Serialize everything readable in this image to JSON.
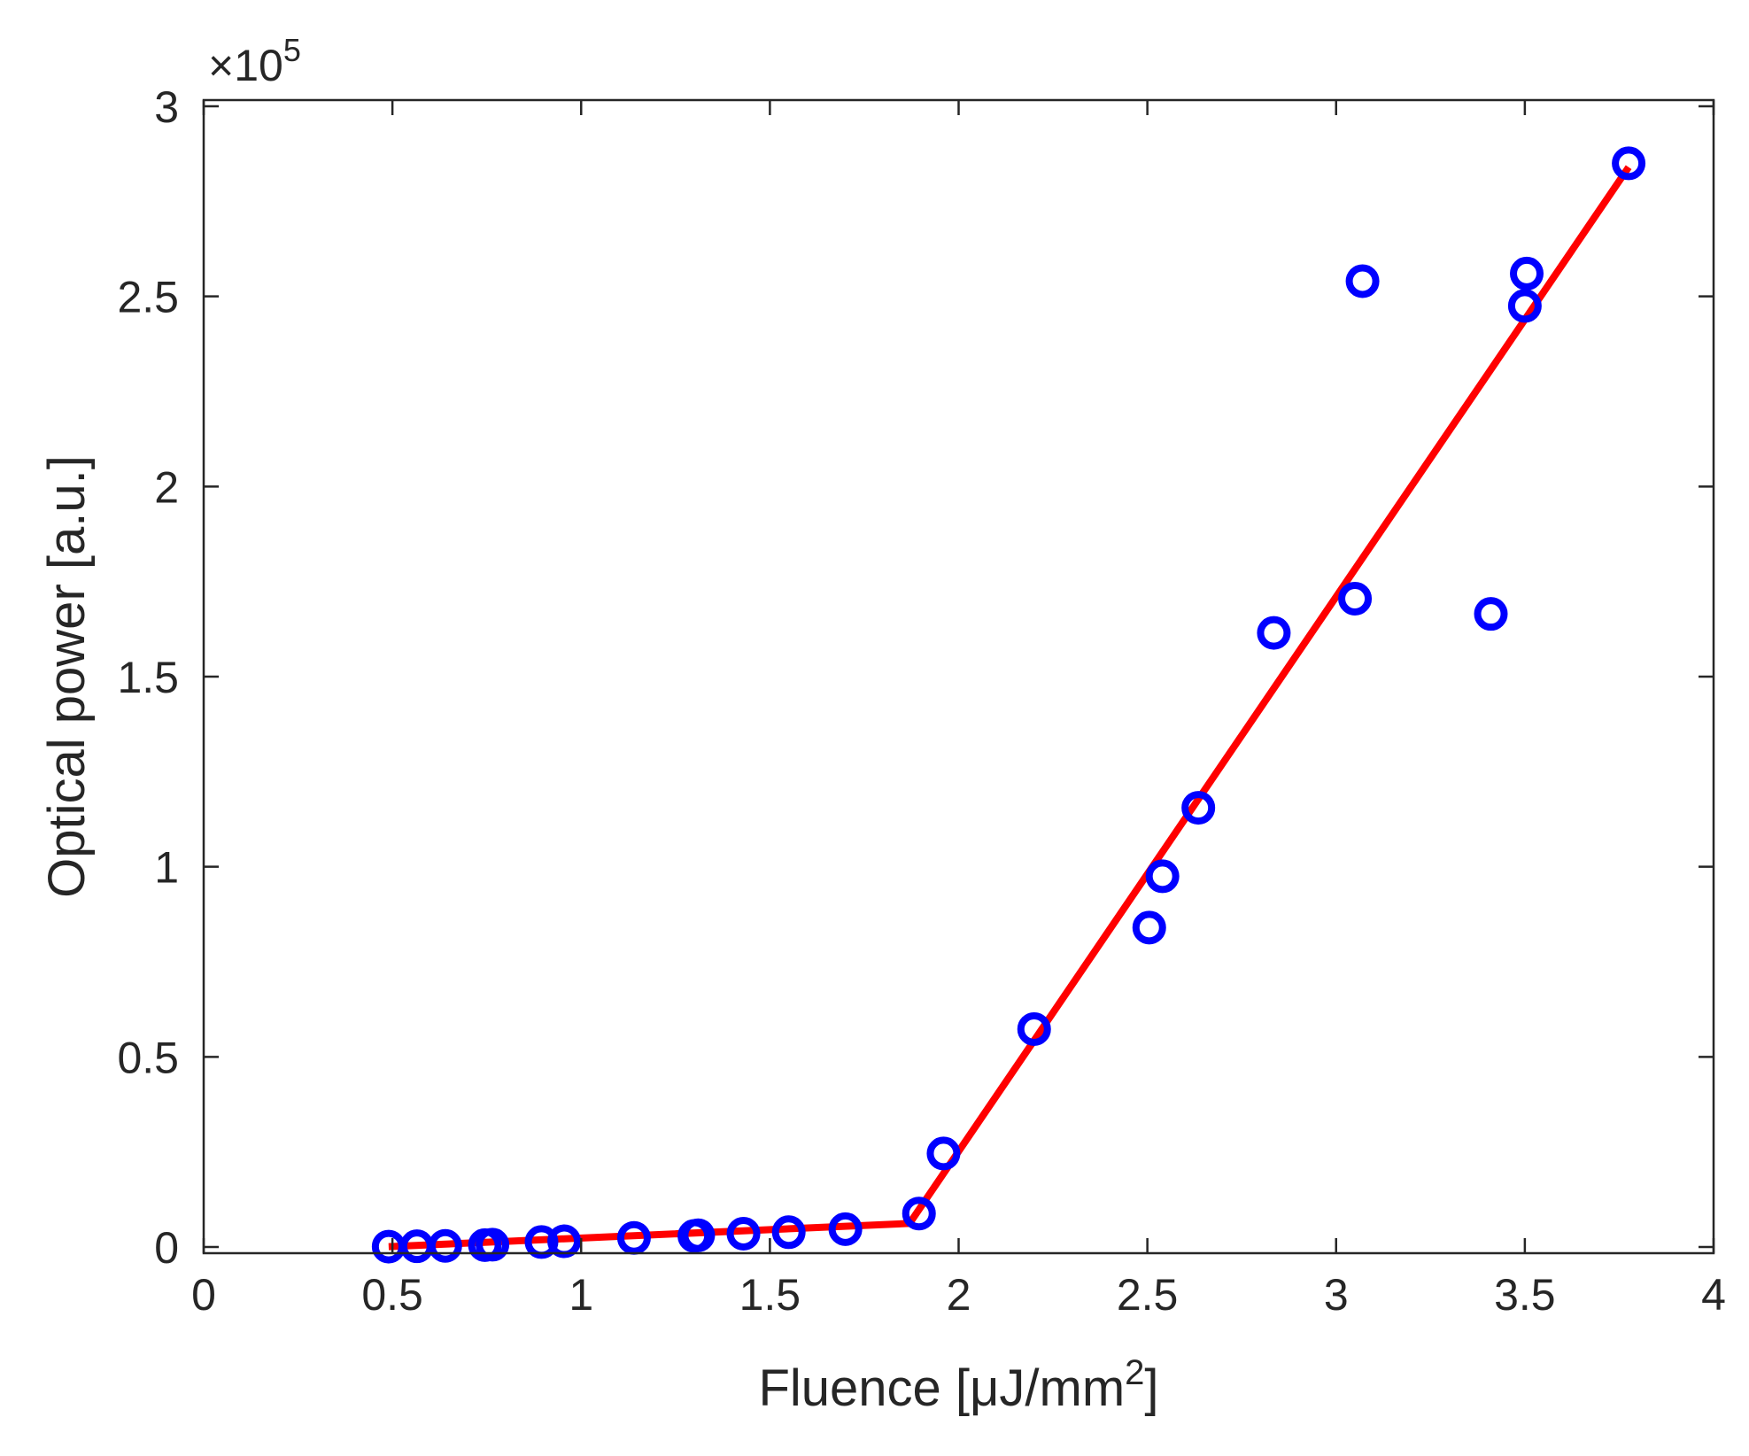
{
  "chart_data": {
    "type": "scatter",
    "title": "",
    "xlabel": "Fluence [μJ/mm",
    "xlabel_superscript": "2",
    "xlabel_suffix": "]",
    "ylabel": "Optical power [a.u.]",
    "y_multiplier": "×10",
    "y_multiplier_exponent": "5",
    "xlim": [
      0,
      4
    ],
    "ylim": [
      0,
      3
    ],
    "xticks": [
      0,
      0.5,
      1,
      1.5,
      2,
      2.5,
      3,
      3.5,
      4
    ],
    "xtick_labels": [
      "0",
      "0.5",
      "1",
      "1.5",
      "2",
      "2.5",
      "3",
      "3.5",
      "4"
    ],
    "yticks": [
      0,
      0.5,
      1,
      1.5,
      2,
      2.5,
      3
    ],
    "ytick_labels": [
      "0",
      "0.5",
      "1",
      "1.5",
      "2",
      "2.5",
      "3"
    ],
    "grid": false,
    "series": [
      {
        "kind": "scatter",
        "marker": "circle-open",
        "color": "#0000ff",
        "x": [
          0.49,
          0.565,
          0.64,
          0.745,
          0.765,
          0.895,
          0.955,
          1.14,
          1.3,
          1.31,
          1.43,
          1.55,
          1.7,
          1.895,
          1.96,
          2.2,
          2.505,
          2.54,
          2.635,
          2.835,
          3.05,
          3.07,
          3.41,
          3.5,
          3.505,
          3.775
        ],
        "y": [
          0.001,
          0.002,
          0.003,
          0.005,
          0.006,
          0.013,
          0.015,
          0.024,
          0.029,
          0.031,
          0.035,
          0.039,
          0.047,
          0.088,
          0.246,
          0.573,
          0.84,
          0.975,
          1.155,
          1.615,
          1.705,
          2.54,
          1.665,
          2.475,
          2.56,
          2.85
        ]
      },
      {
        "kind": "line",
        "color": "#ff0000",
        "x": [
          0.49,
          1.87,
          3.775
        ],
        "y": [
          0.001,
          0.062,
          2.84
        ]
      }
    ]
  }
}
